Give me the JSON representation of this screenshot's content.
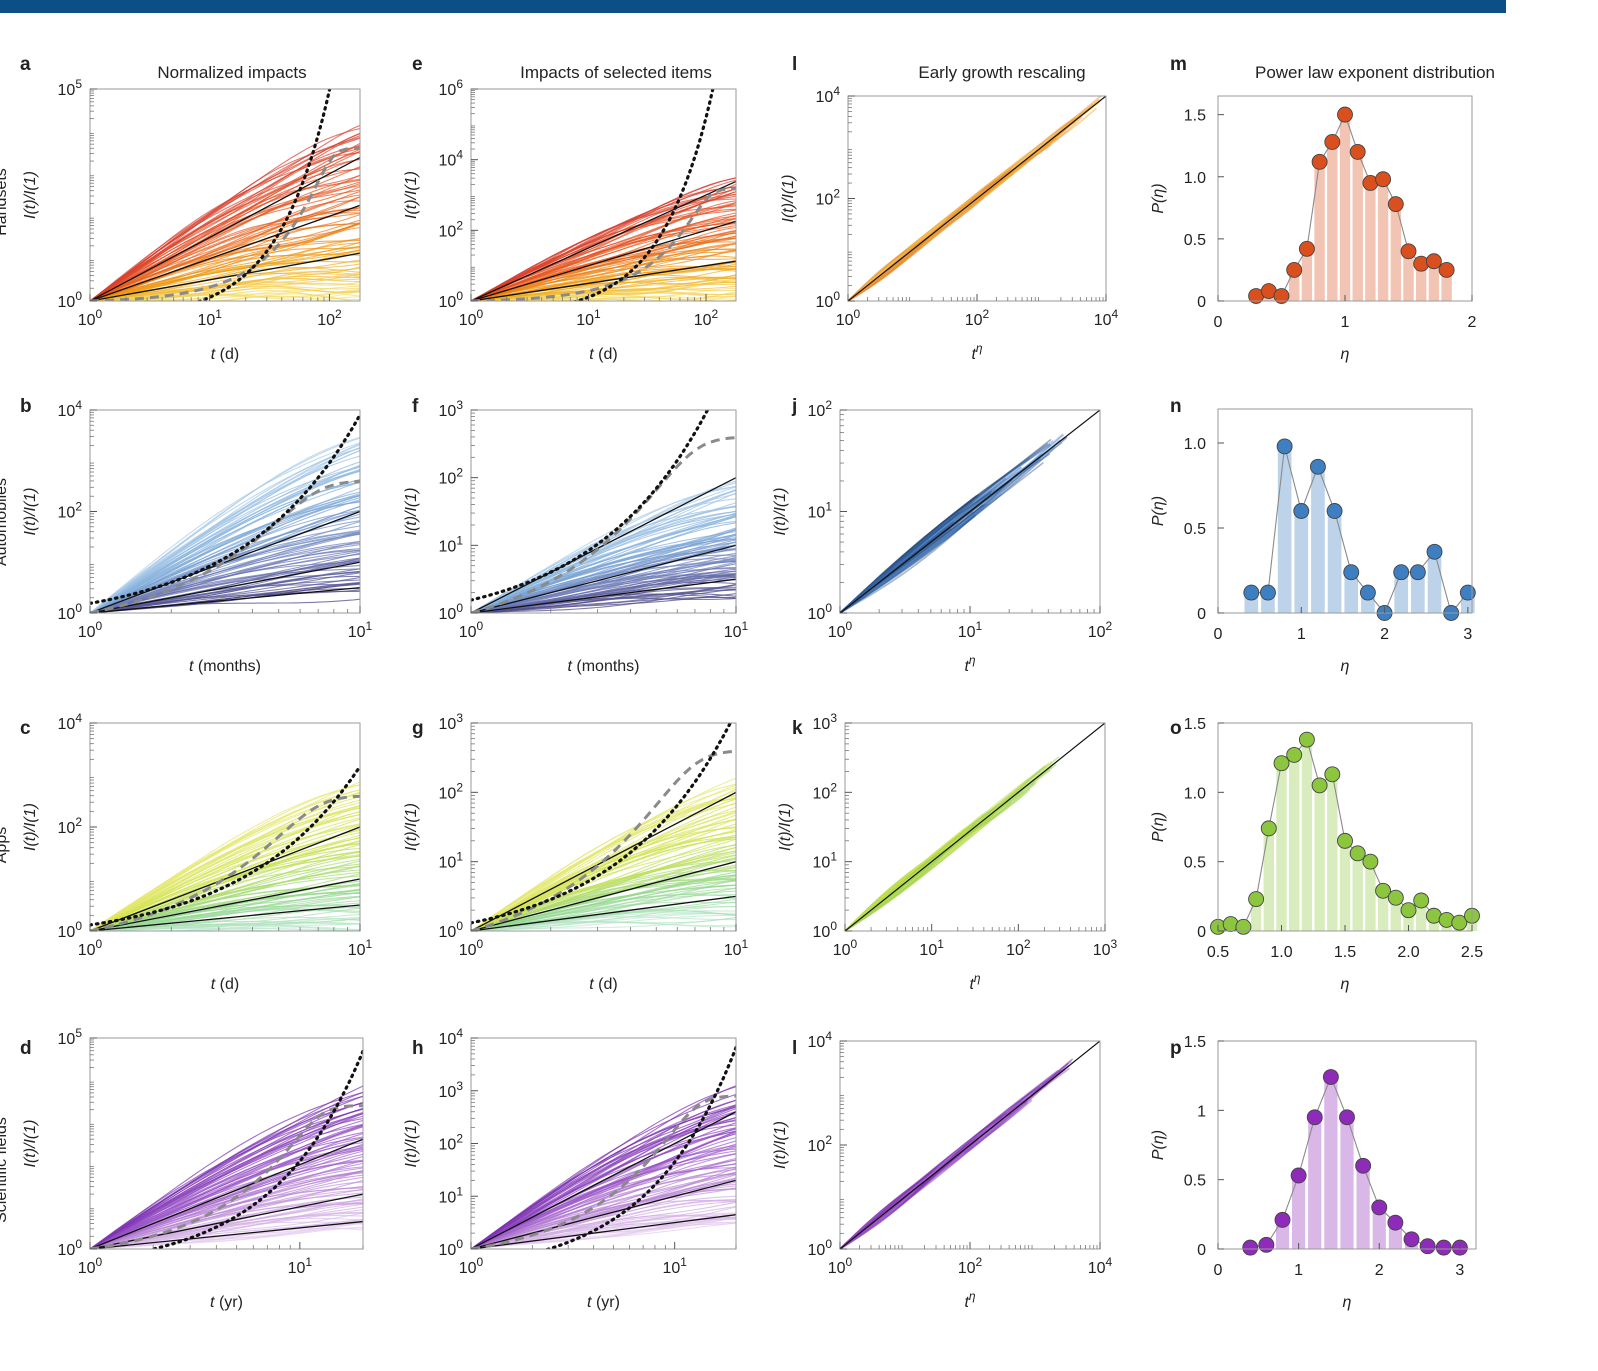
{
  "column_titles": [
    "Normalized impacts",
    "Impacts of selected items",
    "Early growth rescaling",
    "Power law exponent distribution"
  ],
  "row_labels": [
    "Handsets",
    "Automobiles",
    "Apps",
    "Scientific fields"
  ],
  "colors": {
    "handsets": "#e2581d",
    "automobiles": "#3d7fc1",
    "apps": "#8cc63f",
    "scientific": "#8e3fbf",
    "header_bar": "#0b4f86"
  },
  "chart_data": [
    {
      "panel": "a",
      "type": "line",
      "title": "Normalized impacts",
      "row": "Handsets",
      "scale": "log-log",
      "xlabel": "t (d)",
      "ylabel": "I(t)/I(1)",
      "xlim": [
        1,
        180
      ],
      "ylim": [
        1,
        100000
      ],
      "xticks": [
        1,
        10,
        100
      ],
      "yticks": [
        1,
        100000
      ],
      "colors": [
        "#f5e97a",
        "#f0a514",
        "#e85a1c",
        "#d63c2e"
      ],
      "spread_exponent": [
        0,
        2.2
      ],
      "reference_lines_exponent": [
        0.5,
        1,
        1.5
      ],
      "dotted_exponential": {
        "start": 0.35,
        "rate": 0.125
      },
      "dashed_saturation": {
        "K": 4000
      }
    },
    {
      "panel": "b",
      "type": "line",
      "row": "Automobiles",
      "scale": "log-log",
      "xlabel": "t (months)",
      "ylabel": "I(t)/I(1)",
      "xlim": [
        1,
        10
      ],
      "ylim": [
        1,
        10000
      ],
      "xticks": [
        1,
        10
      ],
      "yticks": [
        1,
        100,
        10000
      ],
      "colors": [
        "#47407f",
        "#6a77b5",
        "#7aa8d8",
        "#a9cbea"
      ],
      "spread_exponent": [
        0.5,
        4.2
      ],
      "reference_lines_exponent": [
        0.5,
        1,
        2
      ],
      "dotted_exponential": {
        "start": 0.6,
        "rate": 0.95
      },
      "dashed_saturation": {
        "K": 400
      }
    },
    {
      "panel": "c",
      "type": "line",
      "row": "Apps",
      "scale": "log-log",
      "xlabel": "t (d)",
      "ylabel": "I(t)/I(1)",
      "xlim": [
        1,
        10
      ],
      "ylim": [
        1,
        10000
      ],
      "xticks": [
        1,
        10
      ],
      "yticks": [
        1,
        100,
        10000
      ],
      "colors": [
        "#c3ead9",
        "#8fd68a",
        "#cfe24a",
        "#e6e86f"
      ],
      "spread_exponent": [
        0,
        3.5
      ],
      "reference_lines_exponent": [
        0.5,
        1,
        2
      ],
      "dotted_exponential": {
        "start": 0.6,
        "rate": 0.78
      },
      "dashed_saturation": {
        "K": 400
      }
    },
    {
      "panel": "d",
      "type": "line",
      "row": "Scientific fields",
      "scale": "log-log",
      "xlabel": "t (yr)",
      "ylabel": "I(t)/I(1)",
      "xlim": [
        1,
        20
      ],
      "ylim": [
        1,
        100000
      ],
      "xticks": [
        1,
        10
      ],
      "yticks": [
        1,
        100000
      ],
      "colors": [
        "#e9d3f2",
        "#c79bdc",
        "#9b55c9",
        "#7a2fb0"
      ],
      "spread_exponent": [
        0.4,
        3.5
      ],
      "reference_lines_exponent": [
        0.5,
        1,
        2
      ],
      "dotted_exponential": {
        "start": 0.3,
        "rate": 0.6
      },
      "dashed_saturation": {
        "K": 2500
      }
    },
    {
      "panel": "e",
      "type": "line",
      "title": "Impacts of selected items",
      "scale": "log-log",
      "xlabel": "t (d)",
      "ylabel": "I(t)/I(1)",
      "xlim": [
        1,
        180
      ],
      "ylim": [
        1,
        1000000
      ],
      "xticks": [
        1,
        10,
        100
      ],
      "yticks": [
        1,
        100,
        10000,
        1000000
      ],
      "colors": [
        "#f5e97a",
        "#f0a514",
        "#e85a1c",
        "#d63c2e"
      ],
      "spread_exponent": [
        0,
        1.9
      ],
      "reference_lines_exponent": [
        0.5,
        1,
        1.5
      ],
      "dotted_exponential": {
        "start": 0.35,
        "rate": 0.13
      },
      "dashed_saturation": {
        "K": 1500
      }
    },
    {
      "panel": "f",
      "type": "line",
      "scale": "log-log",
      "xlabel": "t (months)",
      "ylabel": "I(t)/I(1)",
      "xlim": [
        1,
        10
      ],
      "ylim": [
        1,
        1000
      ],
      "xticks": [
        1,
        10
      ],
      "yticks": [
        1,
        10,
        100,
        1000
      ],
      "colors": [
        "#47407f",
        "#6a77b5",
        "#7aa8d8",
        "#a9cbea"
      ],
      "spread_exponent": [
        0.3,
        2.3
      ],
      "reference_lines_exponent": [
        0.5,
        1,
        2
      ],
      "dotted_exponential": {
        "start": 0.6,
        "rate": 0.95
      },
      "dashed_saturation": {
        "K": 400
      }
    },
    {
      "panel": "g",
      "type": "line",
      "scale": "log-log",
      "xlabel": "t (d)",
      "ylabel": "I(t)/I(1)",
      "xlim": [
        1,
        10
      ],
      "ylim": [
        1,
        1000
      ],
      "xticks": [
        1,
        10
      ],
      "yticks": [
        1,
        10,
        100,
        1000
      ],
      "colors": [
        "#c3ead9",
        "#8fd68a",
        "#cfe24a",
        "#e6e86f"
      ],
      "spread_exponent": [
        0.2,
        2.6
      ],
      "reference_lines_exponent": [
        0.5,
        1,
        2
      ],
      "dotted_exponential": {
        "start": 0.6,
        "rate": 0.78
      },
      "dashed_saturation": {
        "K": 400
      }
    },
    {
      "panel": "h",
      "type": "line",
      "scale": "log-log",
      "xlabel": "t (yr)",
      "ylabel": "I(t)/I(1)",
      "xlim": [
        1,
        20
      ],
      "ylim": [
        1,
        10000
      ],
      "xticks": [
        1,
        10
      ],
      "yticks": [
        1,
        10,
        100,
        1000,
        10000
      ],
      "colors": [
        "#e9d3f2",
        "#c79bdc",
        "#9b55c9",
        "#7a2fb0"
      ],
      "spread_exponent": [
        0.4,
        2.8
      ],
      "reference_lines_exponent": [
        0.5,
        1,
        2
      ],
      "dotted_exponential": {
        "start": 0.3,
        "rate": 0.5
      },
      "dashed_saturation": {
        "K": 800
      }
    },
    {
      "panel": "l",
      "type": "line",
      "title": "Early growth rescaling",
      "scale": "log-log",
      "xlabel": "t^η",
      "ylabel": "I(t)/I(1)",
      "xlim": [
        1,
        10000
      ],
      "ylim": [
        1,
        10000
      ],
      "xticks": [
        1,
        100,
        10000
      ],
      "yticks": [
        1,
        100,
        10000
      ],
      "colors": [
        "#f0a514",
        "#f5c06a",
        "#e98a3a"
      ],
      "collapse_extent": 4
    },
    {
      "panel": "j",
      "type": "line",
      "scale": "log-log",
      "xlabel": "t^η",
      "ylabel": "I(t)/I(1)",
      "xlim": [
        1,
        100
      ],
      "ylim": [
        1,
        100
      ],
      "xticks": [
        1,
        10,
        100
      ],
      "yticks": [
        1,
        10,
        100
      ],
      "colors": [
        "#2f5fa0",
        "#5a8fd0",
        "#1f4070"
      ],
      "collapse_extent": 1.75
    },
    {
      "panel": "k",
      "type": "line",
      "scale": "log-log",
      "xlabel": "t^η",
      "ylabel": "I(t)/I(1)",
      "xlim": [
        1,
        1000
      ],
      "ylim": [
        1,
        1000
      ],
      "xticks": [
        1,
        10,
        100,
        1000
      ],
      "yticks": [
        1,
        10,
        100,
        1000
      ],
      "colors": [
        "#b7d94a",
        "#d6e64a",
        "#8fce5a"
      ],
      "collapse_extent": 2.5
    },
    {
      "panel": "l",
      "type": "line",
      "scale": "log-log",
      "xlabel": "t^η",
      "ylabel": "I(t)/I(1)",
      "xlim": [
        1,
        10000
      ],
      "ylim": [
        1,
        10000
      ],
      "xticks": [
        1,
        100,
        10000
      ],
      "yticks": [
        1,
        100,
        10000
      ],
      "colors": [
        "#8e3fbf",
        "#b27ad6",
        "#6f2aa0"
      ],
      "collapse_extent": 3.6
    },
    {
      "panel": "m",
      "type": "bar",
      "title": "Power law exponent distribution",
      "xlabel": "η",
      "ylabel": "P(η)",
      "color": "#d9501e",
      "xlim": [
        0,
        2
      ],
      "ylim": [
        0,
        1.65
      ],
      "xticks": [
        0,
        1,
        2
      ],
      "yticks": [
        0,
        0.5,
        1.0,
        1.5
      ],
      "ytick_labels": [
        "0",
        "0.5",
        "1.0",
        "1.5"
      ],
      "bar_width": 0.1,
      "x": [
        0.3,
        0.4,
        0.5,
        0.6,
        0.7,
        0.8,
        0.9,
        1.0,
        1.1,
        1.2,
        1.3,
        1.4,
        1.5,
        1.6,
        1.7,
        1.8
      ],
      "values": [
        0.04,
        0.08,
        0.04,
        0.25,
        0.42,
        1.12,
        1.28,
        1.5,
        1.2,
        0.95,
        0.98,
        0.78,
        0.4,
        0.3,
        0.32,
        0.25
      ]
    },
    {
      "panel": "n",
      "type": "bar",
      "xlabel": "η",
      "ylabel": "P(η)",
      "color": "#3d7fc1",
      "xlim": [
        0,
        3.05
      ],
      "ylim": [
        0,
        1.2
      ],
      "xticks": [
        0,
        1,
        2,
        3
      ],
      "yticks": [
        0,
        0.5,
        1.0
      ],
      "ytick_labels": [
        "0",
        "0.5",
        "1.0"
      ],
      "bar_width": 0.2,
      "x": [
        0.4,
        0.6,
        0.8,
        1.0,
        1.2,
        1.4,
        1.6,
        1.8,
        2.0,
        2.2,
        2.4,
        2.6,
        2.8,
        3.0
      ],
      "values": [
        0.12,
        0.12,
        0.98,
        0.6,
        0.86,
        0.6,
        0.24,
        0.12,
        0.0,
        0.24,
        0.24,
        0.36,
        0.0,
        0.12
      ]
    },
    {
      "panel": "o",
      "type": "bar",
      "xlabel": "η",
      "ylabel": "P(η)",
      "color": "#8cc63f",
      "xlim": [
        0.5,
        2.5
      ],
      "ylim": [
        0,
        1.5
      ],
      "xticks": [
        0.5,
        1.0,
        1.5,
        2.0,
        2.5
      ],
      "yticks": [
        0,
        0.5,
        1.0,
        1.5
      ],
      "xtick_labels": [
        "0.5",
        "1.0",
        "1.5",
        "2.0",
        "2.5"
      ],
      "ytick_labels": [
        "0",
        "0.5",
        "1.0",
        "1.5"
      ],
      "bar_width": 0.1,
      "x": [
        0.5,
        0.6,
        0.7,
        0.8,
        0.9,
        1.0,
        1.1,
        1.2,
        1.3,
        1.4,
        1.5,
        1.6,
        1.7,
        1.8,
        1.9,
        2.0,
        2.1,
        2.2,
        2.3,
        2.4,
        2.5
      ],
      "values": [
        0.03,
        0.05,
        0.03,
        0.23,
        0.74,
        1.21,
        1.27,
        1.38,
        1.05,
        1.13,
        0.65,
        0.56,
        0.5,
        0.29,
        0.24,
        0.15,
        0.22,
        0.11,
        0.08,
        0.06,
        0.11
      ]
    },
    {
      "panel": "p",
      "type": "bar",
      "xlabel": "η",
      "ylabel": "P(η)",
      "color": "#8e2bb8",
      "xlim": [
        0,
        3.2
      ],
      "ylim": [
        0,
        1.5
      ],
      "xticks": [
        0,
        1,
        2,
        3
      ],
      "yticks": [
        0,
        0.5,
        1,
        1.5
      ],
      "ytick_labels": [
        "0",
        "0.5",
        "1",
        "1.5"
      ],
      "bar_width": 0.2,
      "x": [
        0.4,
        0.6,
        0.8,
        1.0,
        1.2,
        1.4,
        1.6,
        1.8,
        2.0,
        2.2,
        2.4,
        2.6,
        2.8,
        3.0
      ],
      "values": [
        0.01,
        0.03,
        0.21,
        0.53,
        0.95,
        1.24,
        0.95,
        0.6,
        0.3,
        0.19,
        0.07,
        0.02,
        0.01,
        0.01
      ]
    }
  ]
}
